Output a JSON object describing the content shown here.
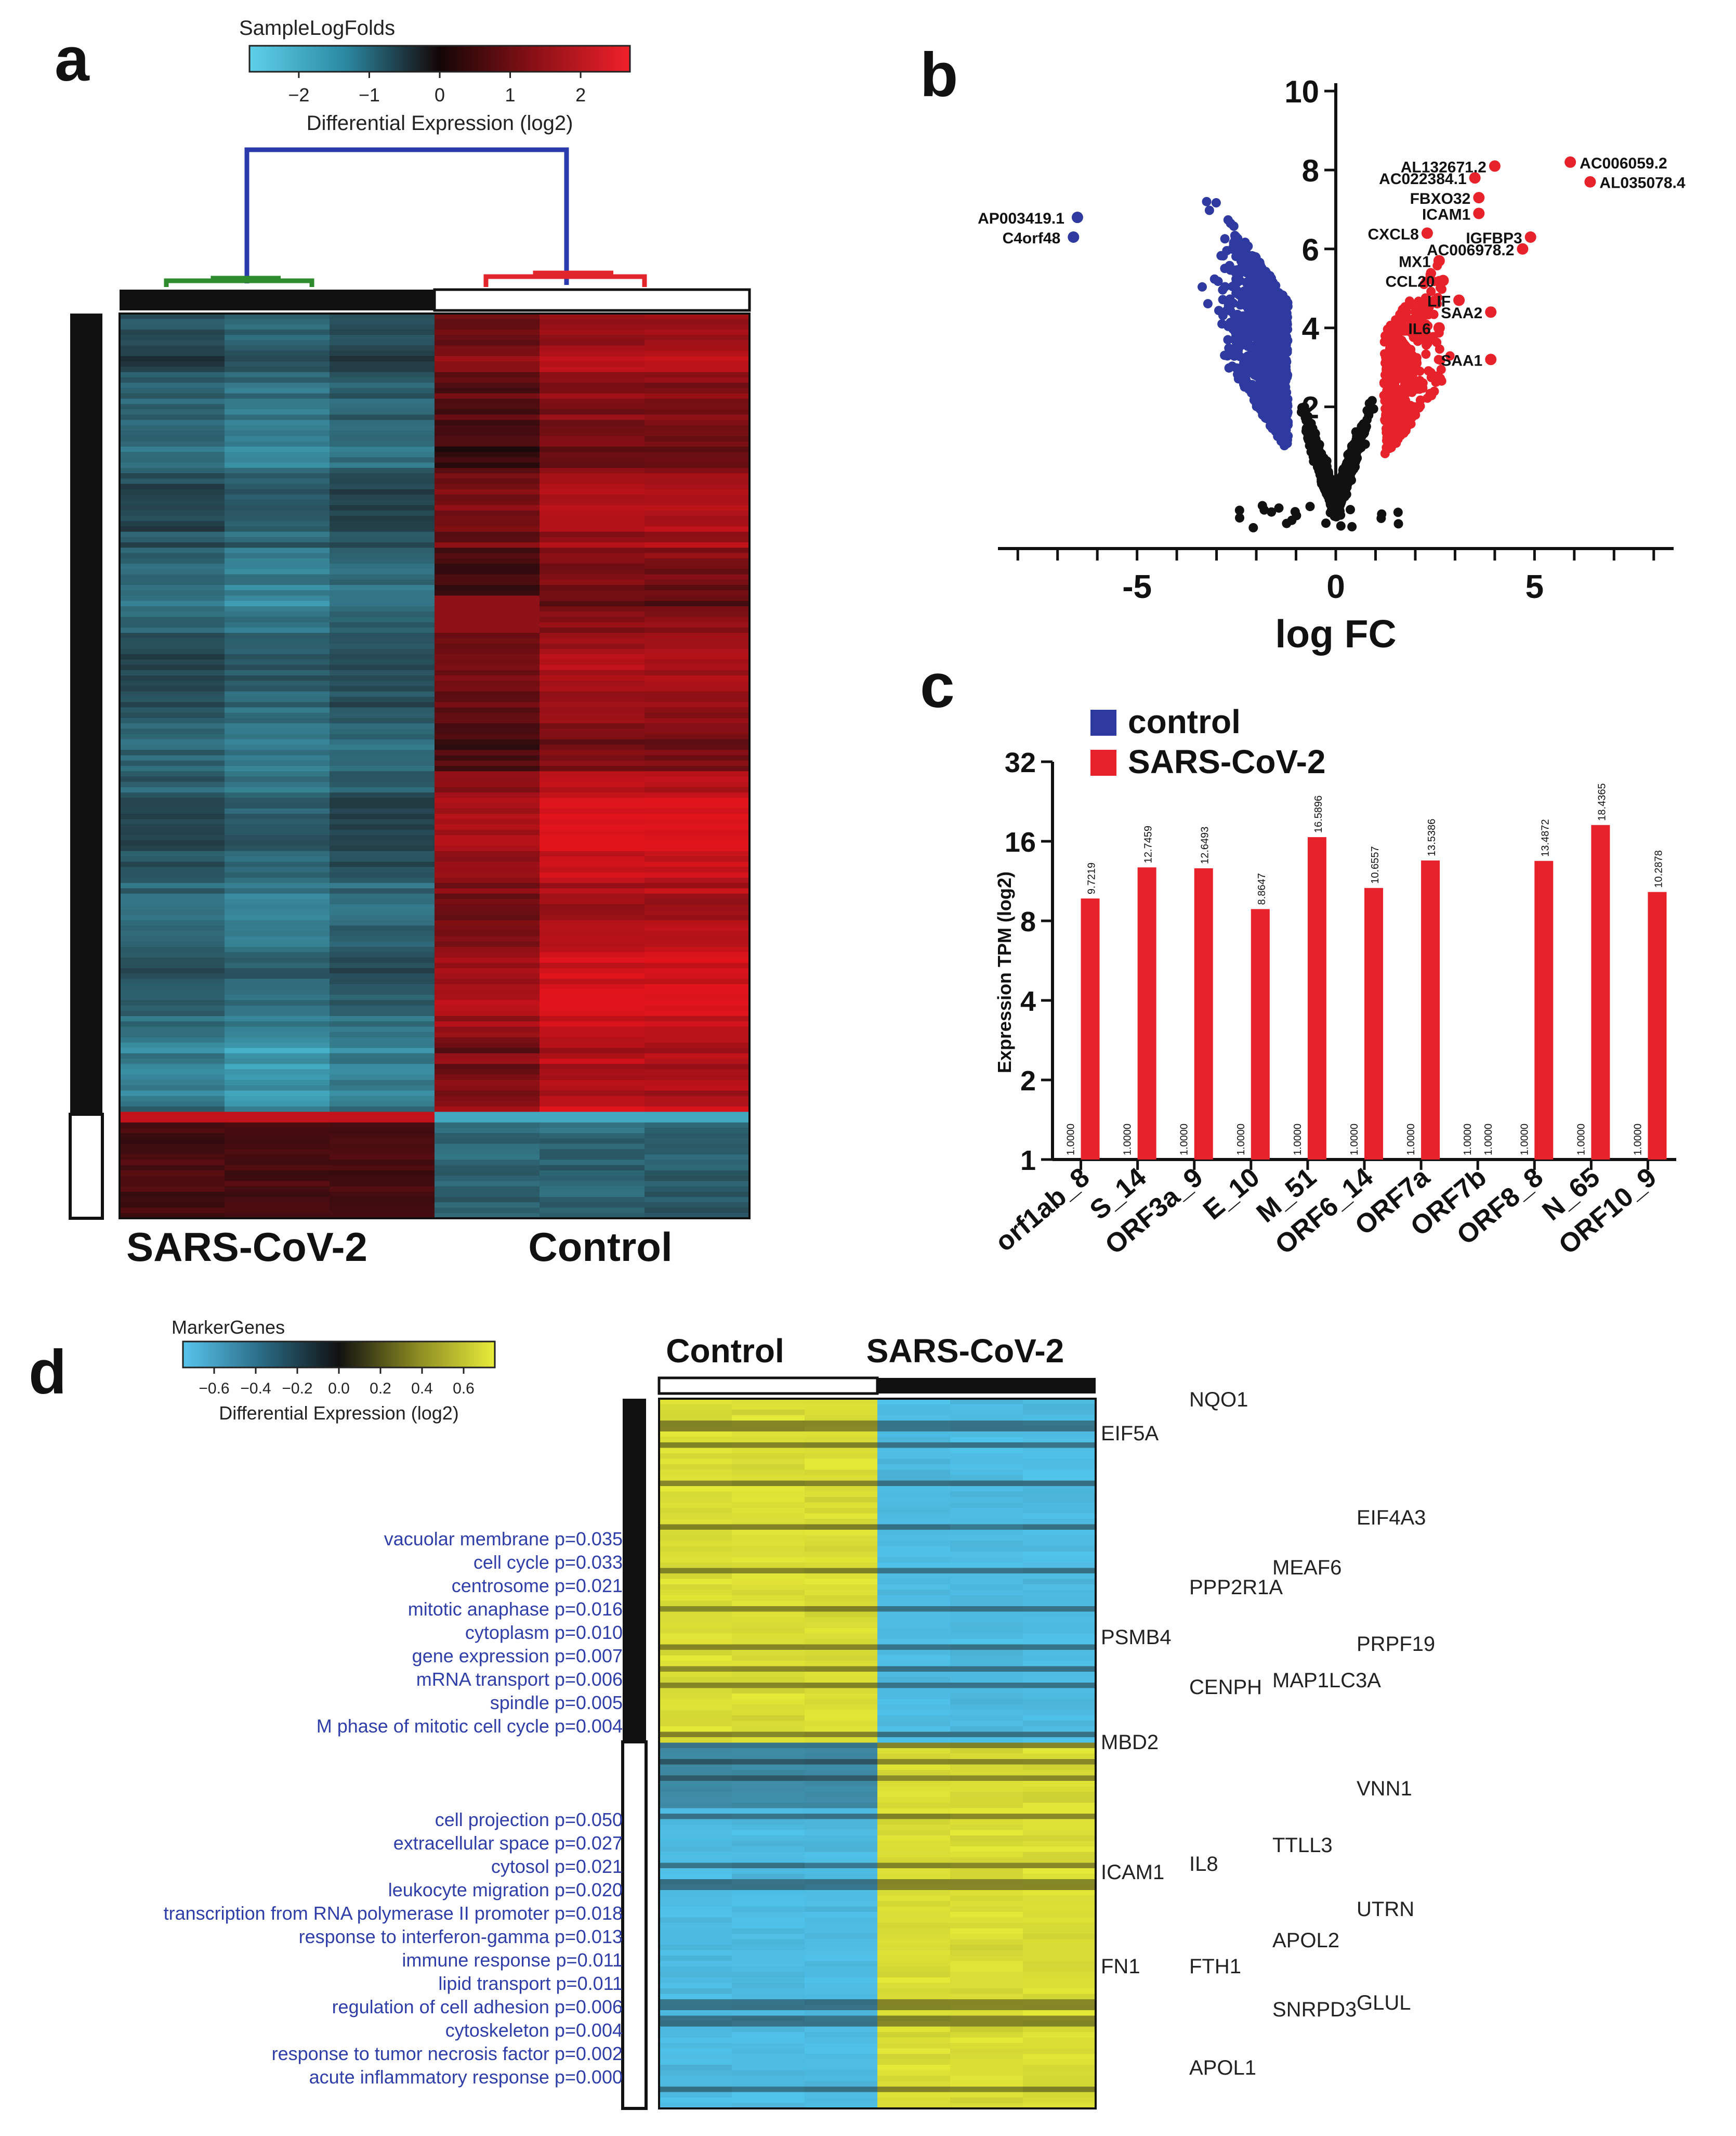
{
  "panel_labels": {
    "a": "a",
    "b": "b",
    "c": "c",
    "d": "d"
  },
  "colors": {
    "up": "#e8222b",
    "down": "#2e3a9f",
    "ns": "#111111",
    "cyan": "#52c5e2",
    "yellow": "#e4e83a",
    "dendro_blue": "#2b3aad",
    "dendro_green": "#2e8b2e",
    "dendro_red": "#e0262b",
    "term_blue": "#2f3ea8"
  },
  "chart_data": [
    {
      "id": "a",
      "type": "heatmap",
      "colorbar": {
        "title": "SampleLogFolds",
        "label": "Differential Expression (log2)",
        "ticks": [
          -2,
          -1,
          0,
          1,
          2
        ],
        "tick_labels": [
          "−2",
          "−1",
          "0",
          "1",
          "2"
        ],
        "range": [
          -2.7,
          2.7
        ]
      },
      "groups": [
        "SARS-CoV-2",
        "Control"
      ],
      "samples_per_group": 3,
      "row_cluster_split": 0.88
    },
    {
      "id": "b",
      "type": "scatter",
      "xlabel": "log FC",
      "ylabel": "",
      "xlim": [
        -8.5,
        8.5
      ],
      "ylim": [
        -1.5,
        10.2
      ],
      "xticks": [
        -5,
        0,
        5
      ],
      "yticks": [
        2,
        4,
        6,
        8,
        10
      ],
      "labeled_points": [
        {
          "label": "AC006059.2",
          "x": 5.9,
          "y": 8.2
        },
        {
          "label": "AL132671.2",
          "x": 4.0,
          "y": 8.1
        },
        {
          "label": "AL035078.4",
          "x": 6.4,
          "y": 7.7
        },
        {
          "label": "AC022384.1",
          "x": 3.5,
          "y": 7.8
        },
        {
          "label": "FBXO32",
          "x": 3.6,
          "y": 7.3
        },
        {
          "label": "ICAM1",
          "x": 3.6,
          "y": 6.9
        },
        {
          "label": "CXCL8",
          "x": 2.3,
          "y": 6.4
        },
        {
          "label": "IGFBP3",
          "x": 4.9,
          "y": 6.3
        },
        {
          "label": "AC006978.2",
          "x": 4.7,
          "y": 6.0
        },
        {
          "label": "MX1",
          "x": 2.6,
          "y": 5.7
        },
        {
          "label": "CCL20",
          "x": 2.7,
          "y": 5.2
        },
        {
          "label": "LIF",
          "x": 3.1,
          "y": 4.7
        },
        {
          "label": "SAA2",
          "x": 3.9,
          "y": 4.4
        },
        {
          "label": "IL6",
          "x": 2.6,
          "y": 4.0
        },
        {
          "label": "SAA1",
          "x": 3.9,
          "y": 3.2
        },
        {
          "label": "AP003419.1",
          "x": -6.5,
          "y": 6.8
        },
        {
          "label": "C4orf48",
          "x": -6.6,
          "y": 6.3
        }
      ]
    },
    {
      "id": "c",
      "type": "bar",
      "ylabel": "Expression TPM (log2)",
      "yticks": [
        1,
        2,
        4,
        8,
        16,
        32
      ],
      "ylim": [
        1,
        32
      ],
      "categories": [
        "orf1ab_8",
        "S_14",
        "ORF3a_9",
        "E_10",
        "M_51",
        "ORF6_14",
        "ORF7a",
        "ORF7b",
        "ORF8_8",
        "N_65",
        "ORF10_9"
      ],
      "series": [
        {
          "name": "control",
          "values": [
            1.0,
            1.0,
            1.0,
            1.0,
            1.0,
            1.0,
            1.0,
            1.0,
            1.0,
            1.0,
            1.0
          ],
          "value_labels": [
            "1.0000",
            "1.0000",
            "1.0000",
            "1.0000",
            "1.0000",
            "1.0000",
            "1.0000",
            "1.0000",
            "1.0000",
            "1.0000",
            "1.0000"
          ]
        },
        {
          "name": "SARS-CoV-2",
          "values": [
            9.7219,
            12.7459,
            12.6493,
            8.8647,
            16.5896,
            10.6557,
            13.5386,
            1.0,
            13.4872,
            18.4365,
            10.2878
          ],
          "value_labels": [
            "9.7219",
            "12.7459",
            "12.6493",
            "8.8647",
            "16.5896",
            "10.6557",
            "13.5386",
            "1.0000",
            "13.4872",
            "18.4365",
            "10.2878"
          ]
        }
      ],
      "legend": [
        "control",
        "SARS-CoV-2"
      ]
    },
    {
      "id": "d",
      "type": "heatmap",
      "colorbar": {
        "title": "MarkerGenes",
        "label": "Differential Expression (log2)",
        "ticks": [
          -0.6,
          -0.4,
          -0.2,
          0.0,
          0.2,
          0.4,
          0.6
        ],
        "tick_labels": [
          "−0.6",
          "−0.4",
          "−0.2",
          "0.0",
          "0.2",
          "0.4",
          "0.6"
        ],
        "range": [
          -0.75,
          0.75
        ]
      },
      "groups": [
        "Control",
        "SARS-CoV-2"
      ],
      "row_cluster_split": 0.45,
      "go_terms_upper": [
        "vacuolar membrane p=0.035",
        "cell cycle p=0.033",
        "centrosome p=0.021",
        "mitotic anaphase p=0.016",
        "cytoplasm p=0.010",
        "gene expression p=0.007",
        "mRNA transport p=0.006",
        "spindle p=0.005",
        "M phase of mitotic cell cycle p=0.004"
      ],
      "go_terms_lower": [
        "cell projection p=0.050",
        "extracellular space p=0.027",
        "cytosol p=0.021",
        "leukocyte migration p=0.020",
        "transcription from RNA polymerase II promoter p=0.018",
        "response to interferon-gamma p=0.013",
        "immune response p=0.011",
        "lipid transport p=0.011",
        "regulation of cell adhesion p=0.006",
        "cytoskeleton p=0.004",
        "response to tumor necrosis factor p=0.002",
        "acute inflammatory response p=0.000"
      ],
      "genes": [
        "NQO1",
        "EIF5A",
        "EIF4A3",
        "MEAF6",
        "PPP2R1A",
        "PSMB4",
        "PRPF19",
        "CENPH",
        "MAP1LC3A",
        "MBD2",
        "VNN1",
        "TTLL3",
        "ICAM1",
        "IL8",
        "UTRN",
        "APOL2",
        "FTH1",
        "FN1",
        "GLUL",
        "SNRPD3",
        "APOL1"
      ]
    }
  ]
}
